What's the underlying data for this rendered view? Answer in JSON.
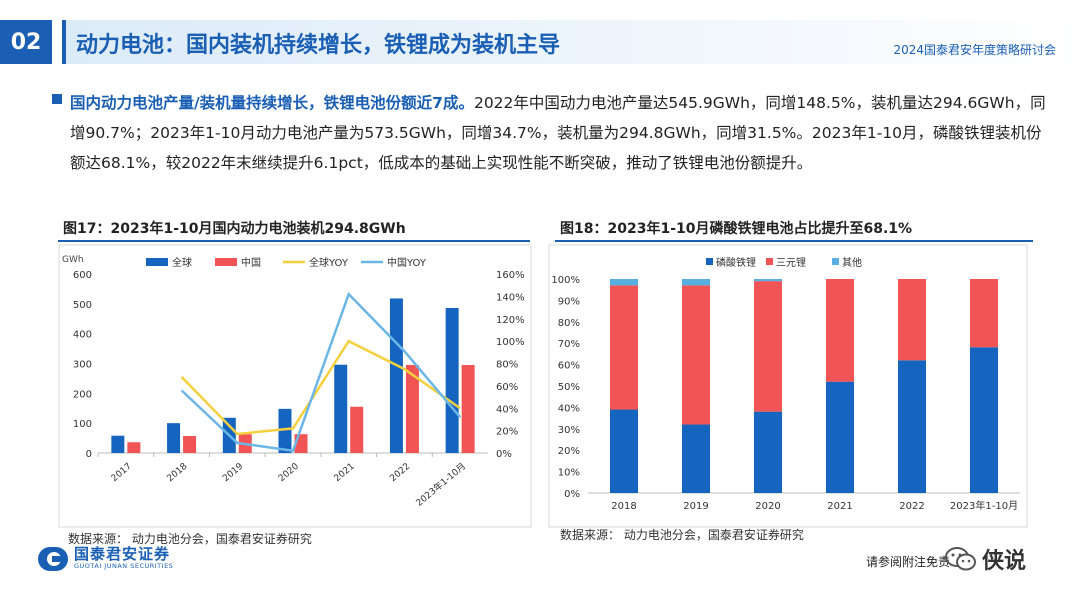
{
  "header": {
    "section_number": "02",
    "title": "动力电池：国内装机持续增长，铁锂成为装机主导",
    "meeting": "2024国泰君安年度策略研讨会"
  },
  "summary": {
    "highlight": "国内动力电池产量/装机量持续增长，铁锂电池份额近7成。",
    "body": "2022年中国动力电池产量达545.9GWh，同增148.5%，装机量达294.6GWh，同增90.7%；2023年1-10月动力电池产量为573.5GWh，同增34.7%，装机量为294.8GWh，同增31.5%。2023年1-10月，磷酸铁锂装机份额达68.1%，较2022年末继续提升6.1pct，低成本的基础上实现性能不断突破，推动了铁锂电池份额提升。"
  },
  "figure17": {
    "title": "图17：2023年1-10月国内动力电池装机294.8GWh",
    "source": "数据来源：  动力电池分会，国泰君安证券研究"
  },
  "figure18": {
    "title": "图18：2023年1-10月磷酸铁锂电池占比提升至68.1%",
    "source": "数据来源：  动力电池分会，国泰君安证券研究"
  },
  "footer": {
    "logo_cn": "国泰君安证券",
    "logo_en": "GUOTAI JUNAN SECURITIES",
    "disclaimer": "请参阅附注免责",
    "wechat_name": "侠说"
  },
  "colors": {
    "brand": "#1a5fb4",
    "blue": "#1565c0",
    "red": "#f05454",
    "yellow": "#f4d03f",
    "lightblue": "#6cb6e6",
    "other": "#5aaee0"
  },
  "chart_data": [
    {
      "type": "bar",
      "unit_label": "GWh",
      "categories": [
        "2017",
        "2018",
        "2019",
        "2020",
        "2021",
        "2022",
        "2023年1-10月"
      ],
      "series": [
        {
          "name": "全球",
          "type": "bar",
          "axis": "left",
          "values": [
            58,
            100,
            118,
            148,
            296,
            518,
            486
          ]
        },
        {
          "name": "中国",
          "type": "bar",
          "axis": "left",
          "values": [
            36,
            57,
            63,
            63,
            155,
            295,
            295
          ]
        },
        {
          "name": "全球YOY",
          "type": "line",
          "axis": "right",
          "values": [
            null,
            68,
            17,
            22,
            100,
            75,
            40
          ]
        },
        {
          "name": "中国YOY",
          "type": "line",
          "axis": "right",
          "values": [
            null,
            56,
            9,
            2,
            142,
            91,
            32
          ]
        }
      ],
      "ylim": [
        0,
        600
      ],
      "yticks": [
        0,
        100,
        200,
        300,
        400,
        500,
        600
      ],
      "y2lim": [
        0,
        160
      ],
      "y2ticks": [
        "0%",
        "20%",
        "40%",
        "60%",
        "80%",
        "100%",
        "120%",
        "140%",
        "160%"
      ],
      "legend": "top",
      "grid": false
    },
    {
      "type": "bar",
      "stacked": true,
      "categories": [
        "2018",
        "2019",
        "2020",
        "2021",
        "2022",
        "2023年1-10月"
      ],
      "series": [
        {
          "name": "磷酸铁锂",
          "values": [
            39,
            32,
            38,
            52,
            62,
            68.1
          ]
        },
        {
          "name": "三元锂",
          "values": [
            58,
            65,
            61,
            48,
            38,
            31.9
          ]
        },
        {
          "name": "其他",
          "values": [
            3,
            3,
            1,
            0,
            0,
            0
          ]
        }
      ],
      "ylim": [
        0,
        100
      ],
      "yticks": [
        "0%",
        "10%",
        "20%",
        "30%",
        "40%",
        "50%",
        "60%",
        "70%",
        "80%",
        "90%",
        "100%"
      ],
      "legend": "top",
      "grid": false
    }
  ]
}
